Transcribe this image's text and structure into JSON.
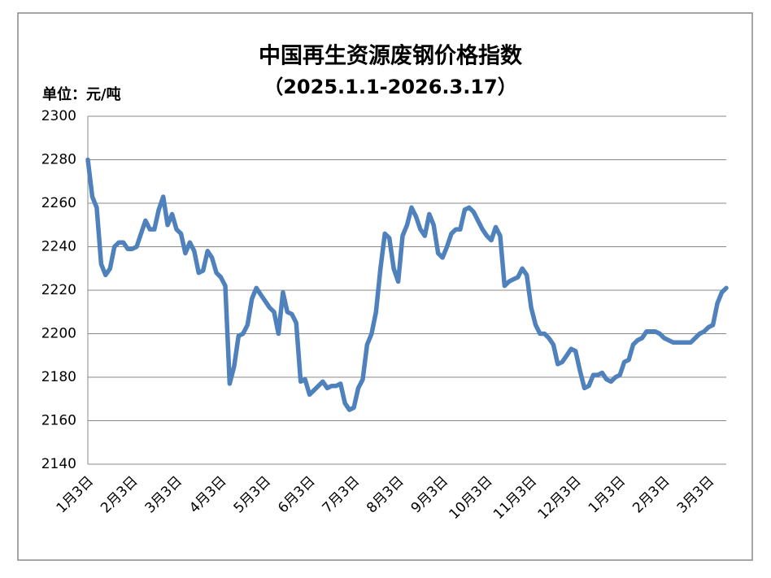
{
  "chart_data": {
    "type": "line",
    "title": "中国再生资源废钢价格指数",
    "subtitle": "（2025.1.1-2026.3.17）",
    "unit_label": "单位：元/吨",
    "categories": [
      "1月3日",
      null,
      null,
      null,
      null,
      null,
      null,
      null,
      null,
      null,
      "2月3日",
      null,
      null,
      null,
      null,
      null,
      null,
      null,
      null,
      null,
      "3月3日",
      null,
      null,
      null,
      null,
      null,
      null,
      null,
      null,
      null,
      "4月3日",
      null,
      null,
      null,
      null,
      null,
      null,
      null,
      null,
      null,
      "5月3日",
      null,
      null,
      null,
      null,
      null,
      null,
      null,
      null,
      null,
      "6月3日",
      null,
      null,
      null,
      null,
      null,
      null,
      null,
      null,
      null,
      "7月3日",
      null,
      null,
      null,
      null,
      null,
      null,
      null,
      null,
      null,
      "8月3日",
      null,
      null,
      null,
      null,
      null,
      null,
      null,
      null,
      null,
      "9月3日",
      null,
      null,
      null,
      null,
      null,
      null,
      null,
      null,
      null,
      "10月3日",
      null,
      null,
      null,
      null,
      null,
      null,
      null,
      null,
      null,
      "11月3日",
      null,
      null,
      null,
      null,
      null,
      null,
      null,
      null,
      null,
      "12月3日",
      null,
      null,
      null,
      null,
      null,
      null,
      null,
      null,
      null,
      "1月3日",
      null,
      null,
      null,
      null,
      null,
      null,
      null,
      null,
      null,
      "2月3日",
      null,
      null,
      null,
      null,
      null,
      null,
      null,
      null,
      null,
      "3月3日",
      null,
      null,
      null,
      null
    ],
    "values": [
      2280,
      2263,
      2258,
      2232,
      2227,
      2230,
      2240,
      2242,
      2242,
      2239,
      2239,
      2240,
      2246,
      2252,
      2248,
      2248,
      2257,
      2263,
      2250,
      2255,
      2248,
      2246,
      2237,
      2242,
      2238,
      2228,
      2229,
      2238,
      2235,
      2228,
      2226,
      2222,
      2177,
      2185,
      2199,
      2200,
      2204,
      2216,
      2221,
      2218,
      2215,
      2212,
      2210,
      2200,
      2219,
      2210,
      2209,
      2205,
      2178,
      2179,
      2172,
      2174,
      2176,
      2178,
      2175,
      2176,
      2176,
      2177,
      2168,
      2165,
      2166,
      2175,
      2179,
      2195,
      2200,
      2210,
      2230,
      2246,
      2244,
      2230,
      2224,
      2245,
      2250,
      2258,
      2254,
      2248,
      2245,
      2255,
      2250,
      2237,
      2235,
      2240,
      2246,
      2248,
      2248,
      2257,
      2258,
      2256,
      2252,
      2248,
      2245,
      2243,
      2249,
      2245,
      2222,
      2224,
      2225,
      2226,
      2230,
      2227,
      2212,
      2204,
      2200,
      2200,
      2198,
      2195,
      2186,
      2187,
      2190,
      2193,
      2192,
      2183,
      2175,
      2176,
      2181,
      2181,
      2182,
      2179,
      2178,
      2180,
      2181,
      2187,
      2188,
      2195,
      2197,
      2198,
      2201,
      2201,
      2201,
      2200,
      2198,
      2197,
      2196,
      2196,
      2196,
      2196,
      2196,
      2198,
      2200,
      2201,
      2203,
      2204,
      2214,
      2219,
      2221
    ],
    "color": "#4f81bd",
    "ylim": [
      2140,
      2300
    ],
    "yticks": [
      2140,
      2160,
      2180,
      2200,
      2220,
      2240,
      2260,
      2280,
      2300
    ],
    "grid": true
  }
}
